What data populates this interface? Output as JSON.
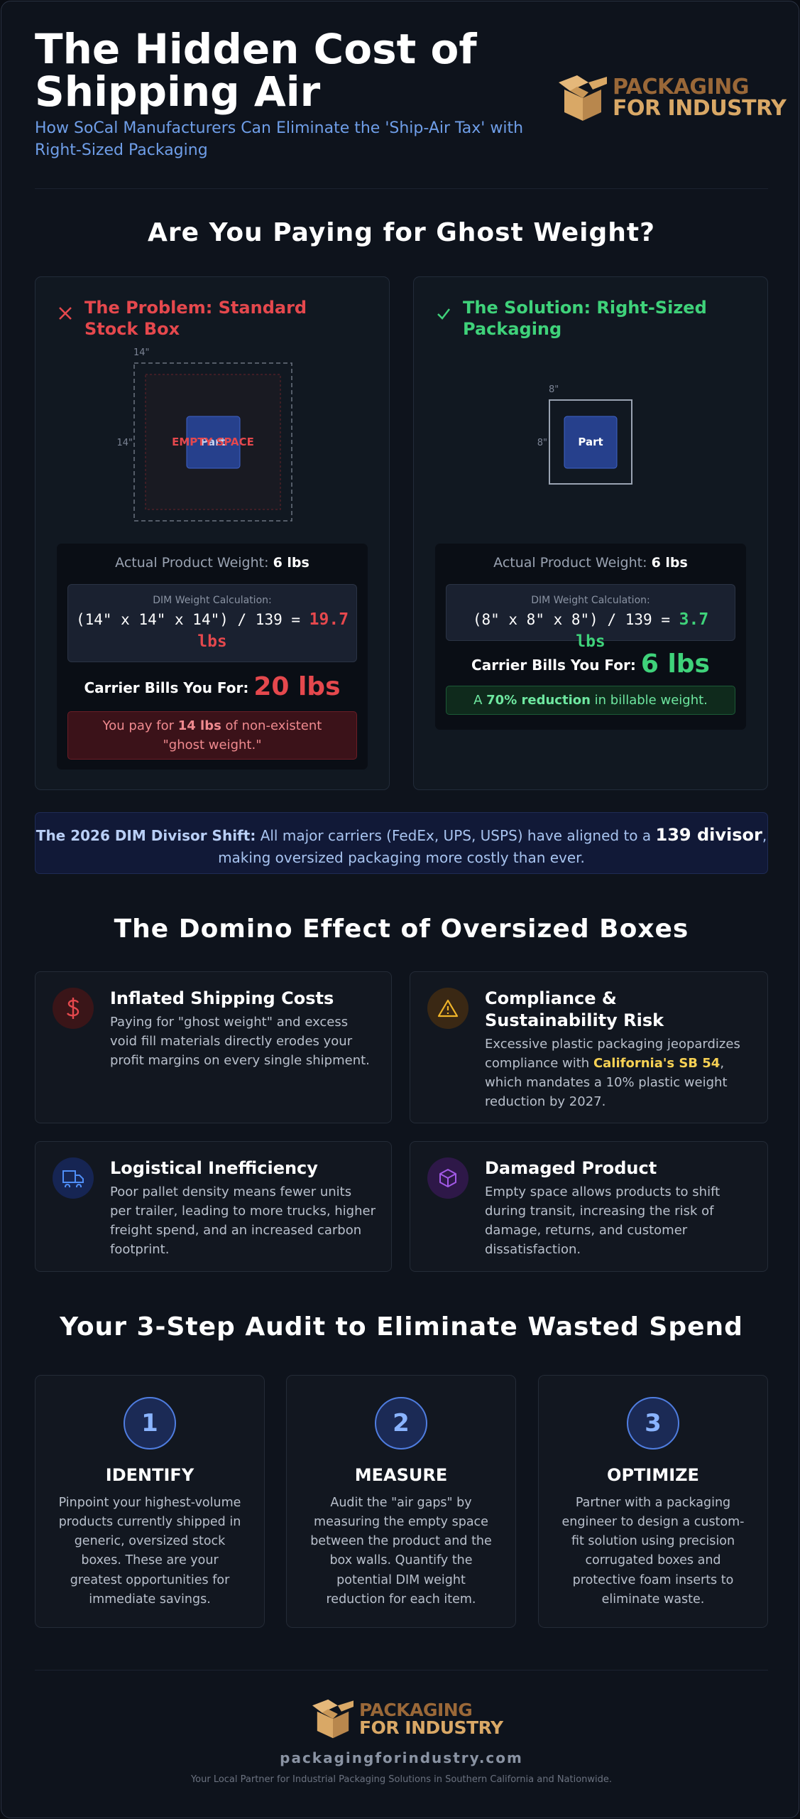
{
  "header": {
    "title": "The Hidden Cost of Shipping Air",
    "subtitle": "How SoCal Manufacturers Can Eliminate the 'Ship-Air Tax' with Right-Sized Packaging",
    "logo_top": "PACKAGING",
    "logo_bottom": "FOR INDUSTRY"
  },
  "ghost": {
    "heading": "Are You Paying for Ghost Weight?",
    "problem": {
      "title": "The Problem: Standard Stock Box",
      "width_label": "14\"",
      "height_label": "14\"",
      "part": "Part",
      "space": "EMPTY SPACE",
      "weight_label": "Actual Product Weight:",
      "weight_value": "6 lbs",
      "dim_label": "DIM Weight Calculation:",
      "dim_formula": "(14\" x 14\" x 14\") / 139 =",
      "dim_result": "19.7 lbs",
      "bill_label": "Carrier Bills You For:",
      "bill_value": "20 lbs",
      "note_pre": "You pay for",
      "note_value": "14 lbs",
      "note_post": "of non-existent \"ghost weight.\""
    },
    "solution": {
      "title": "The Solution: Right-Sized Packaging",
      "width_label": "8\"",
      "height_label": "8\"",
      "part": "Part",
      "weight_label": "Actual Product Weight:",
      "weight_value": "6 lbs",
      "dim_label": "DIM Weight Calculation:",
      "dim_formula": "(8\" x 8\" x 8\") / 139 =",
      "dim_result": "3.7 lbs",
      "bill_label": "Carrier Bills You For:",
      "bill_value": "6 lbs",
      "note_pre": "A",
      "note_value": "70% reduction",
      "note_post": "in billable weight."
    }
  },
  "banner": {
    "lead": "The 2026 DIM Divisor Shift:",
    "text": "All major carriers (FedEx, UPS, USPS) have aligned to a",
    "emphasis": "139 divisor",
    "tail": ", making oversized packaging more costly than ever."
  },
  "domino": {
    "heading": "The Domino Effect of Oversized Boxes",
    "items": [
      {
        "title": "Inflated Shipping Costs",
        "text": "Paying for \"ghost weight\" and excess void fill materials directly erodes your profit margins on every single shipment."
      },
      {
        "title": "Compliance & Sustainability Risk",
        "text": "Excessive plastic packaging jeopardizes compliance with",
        "highlight": "California's SB 54",
        "text_after": ", which mandates a 10% plastic weight reduction by 2027."
      },
      {
        "title": "Logistical Inefficiency",
        "text": "Poor pallet density means fewer units per trailer, leading to more trucks, higher freight spend, and an increased carbon footprint."
      },
      {
        "title": "Damaged Product",
        "text": "Empty space allows products to shift during transit, increasing the risk of damage, returns, and customer dissatisfaction."
      }
    ]
  },
  "audit": {
    "heading": "Your 3-Step Audit to Eliminate Wasted Spend",
    "steps": [
      {
        "number": "1",
        "title": "IDENTIFY",
        "text": "Pinpoint your highest-volume products currently shipped in generic, oversized stock boxes. These are your greatest opportunities for immediate savings."
      },
      {
        "number": "2",
        "title": "MEASURE",
        "text": "Audit the \"air gaps\" by measuring the empty space between the product and the box walls. Quantify the potential DIM weight reduction for each item."
      },
      {
        "number": "3",
        "title": "OPTIMIZE",
        "text": "Partner with a packaging engineer to design a custom-fit solution using precision corrugated boxes and protective foam inserts to eliminate waste."
      }
    ]
  },
  "footer": {
    "logo_top": "PACKAGING",
    "logo_bottom": "FOR INDUSTRY",
    "url": "packagingforindustry.com",
    "tagline": "Your Local Partner for Industrial Packaging Solutions in Southern California and Nationwide."
  }
}
